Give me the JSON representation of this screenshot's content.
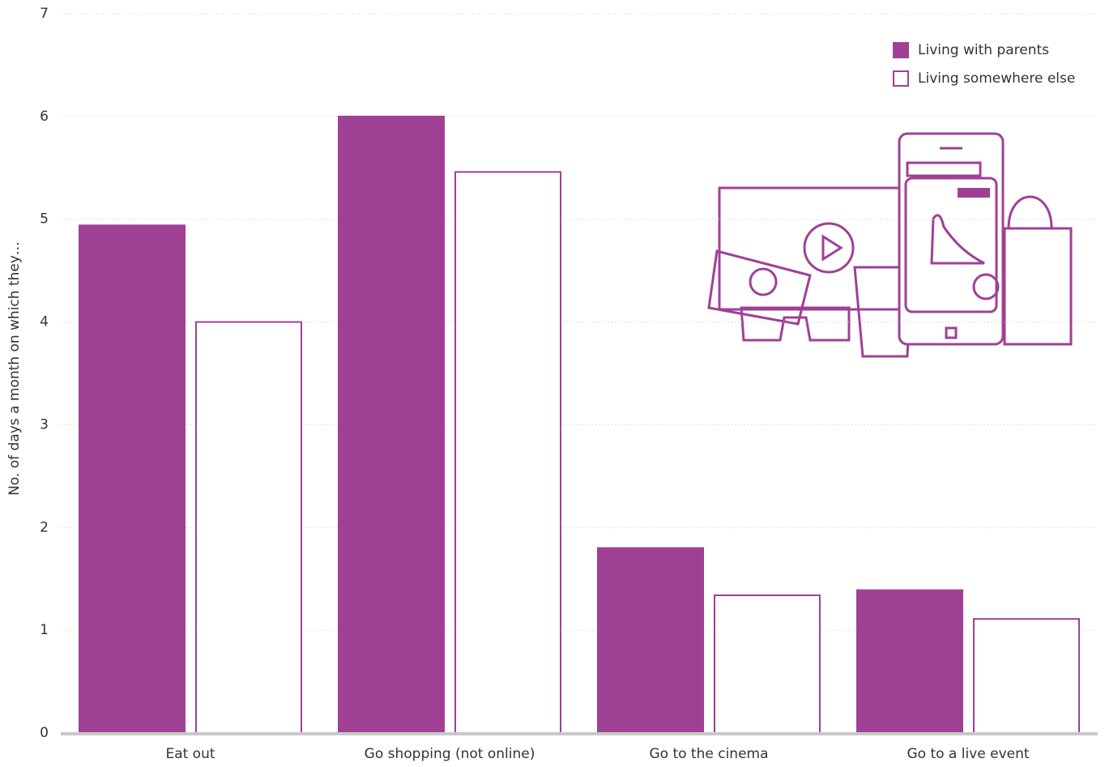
{
  "chart_data": {
    "type": "bar",
    "y_label": "No. of days a month on which they…",
    "categories": [
      "Eat out",
      "Go shopping (not online)",
      "Go to the cinema",
      "Go to a live event"
    ],
    "series": [
      {
        "name": "Living with parents",
        "color": "#a04095",
        "fill": "#a04095",
        "values": [
          4.94,
          6.0,
          1.8,
          1.39
        ]
      },
      {
        "name": "Living somewhere else",
        "color": "#a04095",
        "fill": "#ffffff",
        "values": [
          4.0,
          5.46,
          1.34,
          1.11
        ]
      }
    ],
    "ylim": [
      0,
      7
    ],
    "yticks": [
      0,
      1,
      2,
      3,
      4,
      5,
      6,
      7
    ],
    "grid": true,
    "legend": "top-right"
  }
}
